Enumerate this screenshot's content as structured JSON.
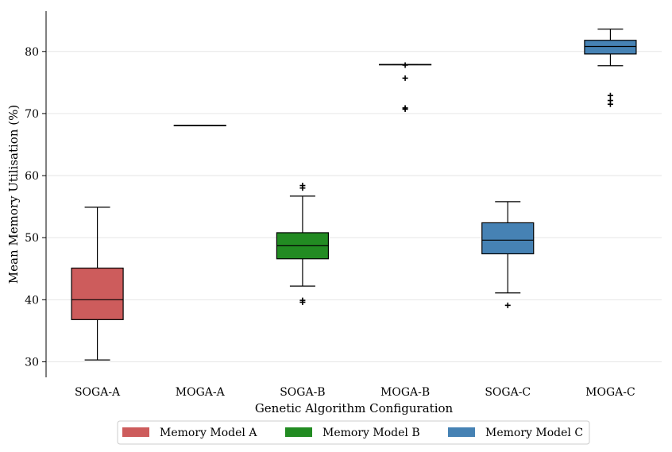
{
  "chart_data": {
    "type": "box",
    "title": "",
    "xlabel": "Genetic Algorithm Configuration",
    "ylabel": "Mean Memory Utilisation (%)",
    "ylim": [
      27.5,
      86.5
    ],
    "yticks": [
      30,
      40,
      50,
      60,
      70,
      80
    ],
    "grid": "horizontal",
    "legend_position": "bottom-center",
    "categories": [
      "SOGA-A",
      "MOGA-A",
      "SOGA-B",
      "MOGA-B",
      "SOGA-C",
      "MOGA-C"
    ],
    "boxes": [
      {
        "label": "SOGA-A",
        "group": "Memory Model A",
        "whisker_low": 30.3,
        "q1": 36.8,
        "median": 40.0,
        "q3": 45.1,
        "whisker_high": 54.9,
        "outliers": []
      },
      {
        "label": "MOGA-A",
        "group": "Memory Model A",
        "whisker_low": 68.1,
        "q1": 68.1,
        "median": 68.1,
        "q3": 68.1,
        "whisker_high": 68.1,
        "outliers": []
      },
      {
        "label": "SOGA-B",
        "group": "Memory Model B",
        "whisker_low": 42.2,
        "q1": 46.6,
        "median": 48.7,
        "q3": 50.8,
        "whisker_high": 56.7,
        "outliers": [
          58.0,
          58.4,
          39.6,
          39.9
        ]
      },
      {
        "label": "MOGA-B",
        "group": "Memory Model B",
        "whisker_low": 77.9,
        "q1": 77.9,
        "median": 77.9,
        "q3": 77.9,
        "whisker_high": 77.9,
        "outliers": [
          77.8,
          75.7,
          70.7,
          70.9
        ]
      },
      {
        "label": "SOGA-C",
        "group": "Memory Model C",
        "whisker_low": 41.1,
        "q1": 47.4,
        "median": 49.6,
        "q3": 52.4,
        "whisker_high": 55.8,
        "outliers": [
          39.1
        ]
      },
      {
        "label": "MOGA-C",
        "group": "Memory Model C",
        "whisker_low": 77.7,
        "q1": 79.6,
        "median": 80.8,
        "q3": 81.8,
        "whisker_high": 83.6,
        "outliers": [
          72.9,
          72.1,
          71.5
        ]
      }
    ],
    "legend": [
      {
        "name": "Memory Model A",
        "color": "#cd5c5c"
      },
      {
        "name": "Memory Model B",
        "color": "#228b22"
      },
      {
        "name": "Memory Model C",
        "color": "#4682b4"
      }
    ]
  }
}
